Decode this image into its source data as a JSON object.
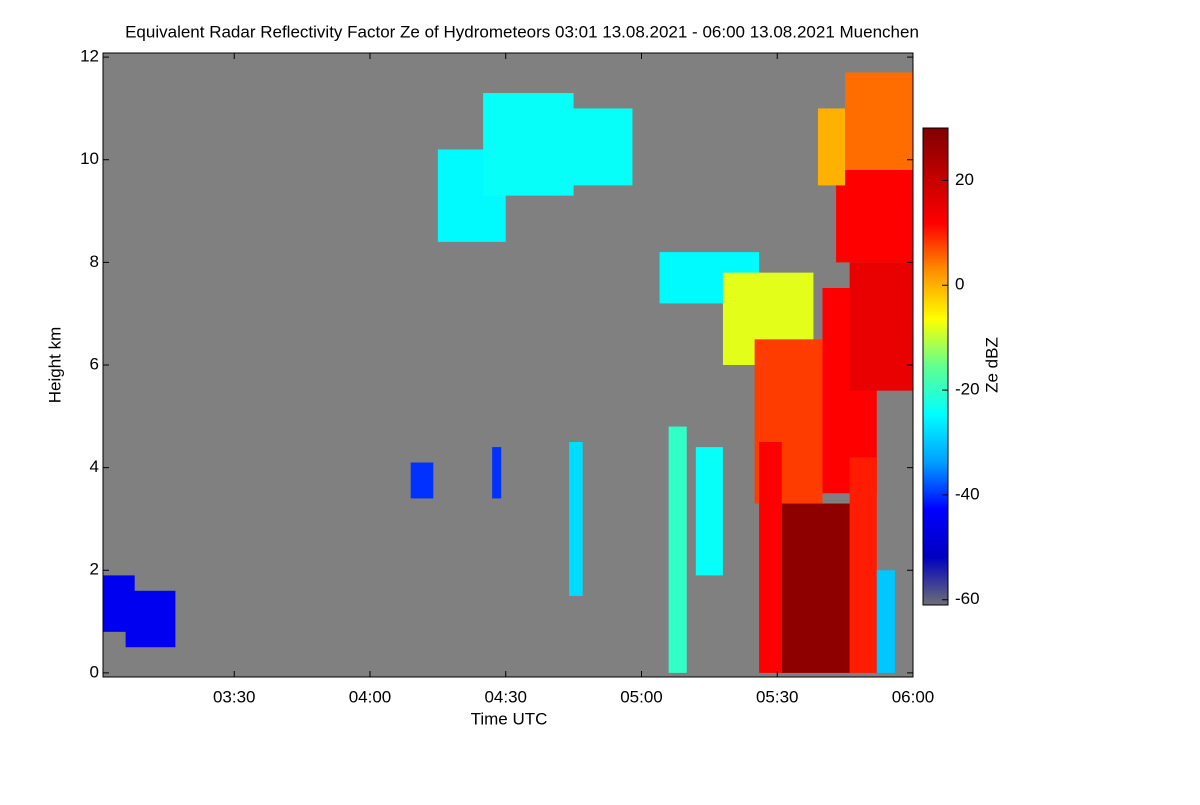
{
  "chart_data": {
    "type": "heatmap",
    "title": "Equivalent Radar Reflectivity Factor Ze of Hydrometeors   03:01 13.08.2021 - 06:00 13.08.2021 Muenchen",
    "x_label": "Time UTC",
    "y_label": "Height km",
    "colorbar_label": "Ze dBZ",
    "xlim": [
      181,
      360
    ],
    "xticks": [
      {
        "value": 210,
        "label": "03:30"
      },
      {
        "value": 240,
        "label": "04:00"
      },
      {
        "value": 270,
        "label": "04:30"
      },
      {
        "value": 300,
        "label": "05:00"
      },
      {
        "value": 330,
        "label": "05:30"
      },
      {
        "value": 360,
        "label": "06:00"
      }
    ],
    "ylim": [
      -0.08,
      12.08
    ],
    "yticks": [
      0,
      2,
      4,
      6,
      8,
      10,
      12
    ],
    "zlim": [
      -61,
      30
    ],
    "zticks": [
      -60,
      -40,
      -20,
      0,
      20
    ],
    "background_color": "#808080",
    "colormap": [
      "#6e6e78",
      "#0000c0",
      "#0000ff",
      "#00a0ff",
      "#00ffff",
      "#60ff90",
      "#ffff00",
      "#ff9000",
      "#ff0000",
      "#c00000",
      "#800000"
    ],
    "cells": [
      {
        "t0": 181,
        "t1": 188,
        "h0": 0.8,
        "h1": 1.9,
        "z": -45
      },
      {
        "t0": 186,
        "t1": 197,
        "h0": 0.5,
        "h1": 1.6,
        "z": -45
      },
      {
        "t0": 249,
        "t1": 254,
        "h0": 3.4,
        "h1": 4.1,
        "z": -40
      },
      {
        "t0": 267,
        "t1": 269,
        "h0": 3.4,
        "h1": 4.4,
        "z": -40
      },
      {
        "t0": 284,
        "t1": 287,
        "h0": 1.5,
        "h1": 4.5,
        "z": -28
      },
      {
        "t0": 255,
        "t1": 270,
        "h0": 8.4,
        "h1": 10.2,
        "z": -25
      },
      {
        "t0": 265,
        "t1": 285,
        "h0": 9.3,
        "h1": 11.3,
        "z": -24
      },
      {
        "t0": 280,
        "t1": 298,
        "h0": 9.5,
        "h1": 11.0,
        "z": -24
      },
      {
        "t0": 306,
        "t1": 310,
        "h0": 0,
        "h1": 4.8,
        "z": -20
      },
      {
        "t0": 312,
        "t1": 318,
        "h0": 1.9,
        "h1": 4.4,
        "z": -24
      },
      {
        "t0": 304,
        "t1": 326,
        "h0": 7.2,
        "h1": 8.2,
        "z": -25
      },
      {
        "t0": 318,
        "t1": 338,
        "h0": 6.0,
        "h1": 7.8,
        "z": -8
      },
      {
        "t0": 325,
        "t1": 340,
        "h0": 3.3,
        "h1": 6.5,
        "z": 8
      },
      {
        "t0": 340,
        "t1": 352,
        "h0": 3.5,
        "h1": 7.5,
        "z": 12
      },
      {
        "t0": 326,
        "t1": 331,
        "h0": 0,
        "h1": 4.5,
        "z": 12
      },
      {
        "t0": 346,
        "t1": 352,
        "h0": 0,
        "h1": 4.2,
        "z": 10
      },
      {
        "t0": 352,
        "t1": 356,
        "h0": 0,
        "h1": 2.0,
        "z": -30
      },
      {
        "t0": 331,
        "t1": 346,
        "h0": 0,
        "h1": 3.3,
        "z": 28
      },
      {
        "t0": 346,
        "t1": 360,
        "h0": 5.5,
        "h1": 8.0,
        "z": 15
      },
      {
        "t0": 343,
        "t1": 360,
        "h0": 8.0,
        "h1": 9.8,
        "z": 12
      },
      {
        "t0": 339,
        "t1": 345,
        "h0": 9.5,
        "h1": 11.0,
        "z": 0
      },
      {
        "t0": 345,
        "t1": 360,
        "h0": 9.8,
        "h1": 11.7,
        "z": 5
      }
    ]
  }
}
